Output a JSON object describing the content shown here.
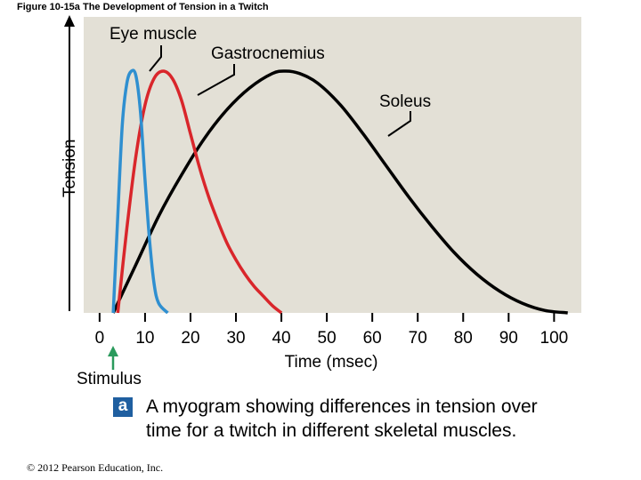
{
  "figure_title": "Figure 10-15a  The Development of Tension in a Twitch",
  "caption": {
    "badge": "a",
    "text": "A myogram showing differences in tension over time for a twitch in different skeletal muscles."
  },
  "copyright": "© 2012 Pearson Education, Inc.",
  "stimulus_label": "Stimulus",
  "colors": {
    "plot_bg": "#e3e0d6",
    "eye": "#2f8fd0",
    "gastro": "#d9262b",
    "soleus": "#000000",
    "stimulus_arrow": "#2a9a5c",
    "badge": "#1f5fa0"
  },
  "chart_data": {
    "type": "line",
    "title": "The Development of Tension in a Twitch",
    "xlabel": "Time (msec)",
    "ylabel": "Tension",
    "xlim": [
      -3.5,
      106
    ],
    "ylim": [
      0,
      1
    ],
    "x_ticks": [
      0,
      10,
      20,
      30,
      40,
      50,
      60,
      70,
      80,
      90,
      100
    ],
    "x_tick_labels": [
      "0",
      "10",
      "20",
      "30",
      "40",
      "50",
      "60",
      "70",
      "80",
      "90",
      "100"
    ],
    "stimulus_at": 0,
    "series": [
      {
        "name": "Eye muscle",
        "color": "#2f8fd0",
        "x": [
          3,
          4,
          5,
          6,
          7,
          8,
          9,
          10,
          11,
          12,
          13,
          15
        ],
        "y": [
          0,
          0.4,
          0.78,
          0.95,
          1.0,
          0.98,
          0.83,
          0.55,
          0.3,
          0.12,
          0.04,
          0
        ]
      },
      {
        "name": "Gastrocnemius",
        "color": "#d9262b",
        "x": [
          4,
          6,
          8,
          10,
          12,
          14,
          16,
          18,
          20,
          22,
          24,
          26,
          28,
          30,
          32,
          34,
          36,
          38,
          40
        ],
        "y": [
          0,
          0.35,
          0.65,
          0.86,
          0.97,
          1.0,
          0.97,
          0.88,
          0.74,
          0.6,
          0.48,
          0.38,
          0.29,
          0.22,
          0.16,
          0.11,
          0.07,
          0.03,
          0
        ]
      },
      {
        "name": "Soleus",
        "color": "#000000",
        "x": [
          3,
          8,
          13,
          18,
          23,
          28,
          33,
          38,
          41,
          44,
          48,
          53,
          58,
          63,
          68,
          73,
          78,
          83,
          88,
          93,
          98,
          103
        ],
        "y": [
          0,
          0.2,
          0.4,
          0.57,
          0.72,
          0.84,
          0.93,
          0.99,
          1.0,
          0.99,
          0.95,
          0.86,
          0.74,
          0.61,
          0.48,
          0.36,
          0.25,
          0.16,
          0.09,
          0.04,
          0.01,
          0
        ]
      }
    ],
    "annotations": [
      "Eye muscle",
      "Gastrocnemius",
      "Soleus"
    ]
  }
}
